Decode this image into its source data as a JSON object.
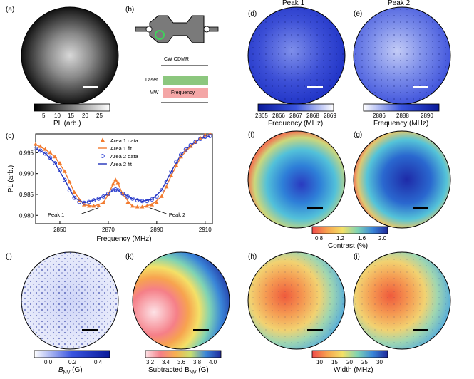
{
  "panels": {
    "a": {
      "label": "(a)",
      "colorbar": {
        "ticks": [
          "5",
          "10",
          "15",
          "20",
          "25"
        ],
        "label": "PL (arb.)"
      }
    },
    "b": {
      "label": "(b)",
      "title": "CW ODMR",
      "laser": "Laser",
      "mw": "MW",
      "frequency": "Frequency",
      "colors": {
        "laser": "#8cc77e",
        "mw": "#f4a6a6"
      }
    },
    "c": {
      "label": "(c)"
    },
    "d": {
      "label": "(d)",
      "title": "Peak 1",
      "colorbar": {
        "ticks": [
          "2865",
          "2866",
          "2867",
          "2868",
          "2869"
        ],
        "label": "Frequency (MHz)"
      }
    },
    "e": {
      "label": "(e)",
      "title": "Peak 2",
      "colorbar": {
        "ticks": [
          "2886",
          "2888",
          "2890"
        ],
        "label": "Frequency (MHz)"
      }
    },
    "f": {
      "label": "(f)"
    },
    "g": {
      "label": "(g)",
      "colorbar": {
        "ticks": [
          "0.8",
          "1.2",
          "1.6",
          "2.0"
        ],
        "label": "Contrast (%)"
      }
    },
    "h": {
      "label": "(h)"
    },
    "i": {
      "label": "(i)",
      "colorbar": {
        "ticks": [
          "10",
          "15",
          "20",
          "25",
          "30"
        ],
        "label": "Width (MHz)"
      }
    },
    "j": {
      "label": "(j)",
      "colorbar": {
        "ticks": [
          "0.0",
          "0.2",
          "0.4"
        ],
        "label_main": "B",
        "label_sub": "NV",
        "label_unit": " (G)"
      }
    },
    "k": {
      "label": "(k)",
      "colorbar": {
        "ticks": [
          "3.2",
          "3.4",
          "3.6",
          "3.8",
          "4.0"
        ],
        "label_main": "Subtracted B",
        "label_sub": "NV",
        "label_unit": " (G)"
      }
    }
  },
  "chart_data": {
    "type": "line",
    "xlabel": "Frequency (MHz)",
    "ylabel": "PL (arb.)",
    "xlim": [
      2840,
      2913
    ],
    "ylim": [
      0.978,
      0.9995
    ],
    "xticks": [
      2850,
      2870,
      2890,
      2910
    ],
    "yticks": [
      0.98,
      0.985,
      0.99,
      0.995
    ],
    "annotations": [
      "Peak 1",
      "Peak 2"
    ],
    "series": [
      {
        "name": "Area 1 data",
        "kind": "marker",
        "marker": "triangle",
        "color": "#f27a2e",
        "x": [
          2840,
          2842,
          2844,
          2846,
          2848,
          2850,
          2852,
          2854,
          2856,
          2858,
          2860,
          2862,
          2864,
          2866,
          2868,
          2870,
          2872,
          2873,
          2874,
          2876,
          2878,
          2880,
          2882,
          2884,
          2886,
          2888,
          2890,
          2892,
          2894,
          2896,
          2898,
          2900,
          2902,
          2904,
          2906,
          2908,
          2910,
          2912
        ],
        "y": [
          0.997,
          0.9965,
          0.9958,
          0.995,
          0.994,
          0.9925,
          0.9905,
          0.988,
          0.9855,
          0.9835,
          0.9825,
          0.9822,
          0.9822,
          0.9823,
          0.983,
          0.985,
          0.9875,
          0.9885,
          0.9878,
          0.9852,
          0.983,
          0.9822,
          0.982,
          0.982,
          0.9822,
          0.9825,
          0.983,
          0.9845,
          0.9868,
          0.9895,
          0.992,
          0.994,
          0.9955,
          0.9965,
          0.9975,
          0.9985,
          0.9993,
          0.9995
        ]
      },
      {
        "name": "Area 1 fit",
        "kind": "line",
        "color": "#f27a2e",
        "x": [
          2840,
          2844,
          2848,
          2852,
          2856,
          2860,
          2864,
          2868,
          2870,
          2872,
          2873,
          2874,
          2876,
          2880,
          2884,
          2888,
          2892,
          2896,
          2900,
          2904,
          2908,
          2912
        ],
        "y": [
          0.997,
          0.9958,
          0.994,
          0.9905,
          0.9855,
          0.9825,
          0.9822,
          0.983,
          0.985,
          0.9875,
          0.9884,
          0.9877,
          0.985,
          0.9821,
          0.982,
          0.9826,
          0.9845,
          0.9895,
          0.994,
          0.9965,
          0.9985,
          0.9994
        ]
      },
      {
        "name": "Area 2 data",
        "kind": "marker",
        "marker": "circle",
        "color": "#2b3fd4",
        "x": [
          2840,
          2842,
          2844,
          2846,
          2848,
          2850,
          2852,
          2854,
          2856,
          2858,
          2860,
          2862,
          2864,
          2866,
          2868,
          2870,
          2872,
          2873,
          2874,
          2876,
          2878,
          2880,
          2882,
          2884,
          2886,
          2888,
          2890,
          2892,
          2894,
          2896,
          2898,
          2900,
          2902,
          2904,
          2906,
          2908,
          2910,
          2912
        ],
        "y": [
          0.996,
          0.9955,
          0.9948,
          0.9938,
          0.9925,
          0.9908,
          0.9885,
          0.986,
          0.9842,
          0.9832,
          0.983,
          0.9832,
          0.9836,
          0.984,
          0.9845,
          0.9852,
          0.986,
          0.9862,
          0.986,
          0.9852,
          0.9845,
          0.984,
          0.9836,
          0.9834,
          0.9834,
          0.9838,
          0.9845,
          0.986,
          0.988,
          0.9905,
          0.9928,
          0.9945,
          0.9958,
          0.9968,
          0.9976,
          0.9983,
          0.9988,
          0.999
        ]
      },
      {
        "name": "Area 2 fit",
        "kind": "line",
        "color": "#1f2fb8",
        "x": [
          2840,
          2844,
          2848,
          2852,
          2856,
          2860,
          2864,
          2868,
          2870,
          2872,
          2873,
          2874,
          2876,
          2880,
          2884,
          2888,
          2892,
          2896,
          2900,
          2904,
          2908,
          2912
        ],
        "y": [
          0.996,
          0.9948,
          0.9925,
          0.9885,
          0.9842,
          0.983,
          0.9836,
          0.9845,
          0.9852,
          0.986,
          0.9862,
          0.986,
          0.9852,
          0.984,
          0.9834,
          0.9838,
          0.986,
          0.9905,
          0.9945,
          0.9968,
          0.9983,
          0.999
        ]
      }
    ]
  }
}
